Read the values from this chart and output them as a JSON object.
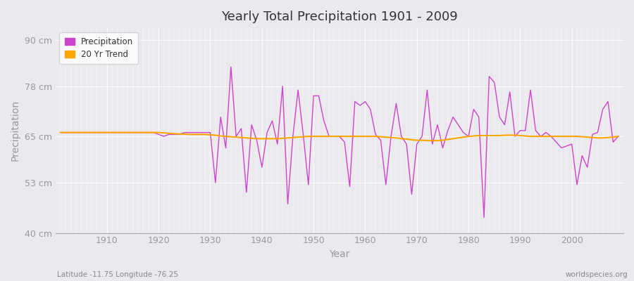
{
  "title": "Yearly Total Precipitation 1901 - 2009",
  "xlabel": "Year",
  "ylabel": "Precipitation",
  "subtitle_left": "Latitude -11.75 Longitude -76.25",
  "subtitle_right": "worldspecies.org",
  "ylim": [
    40,
    93
  ],
  "yticks": [
    40,
    53,
    65,
    78,
    90
  ],
  "ytick_labels": [
    "40 cm",
    "53 cm",
    "65 cm",
    "78 cm",
    "90 cm"
  ],
  "xlim": [
    1900,
    2010
  ],
  "xticks": [
    1910,
    1920,
    1930,
    1940,
    1950,
    1960,
    1970,
    1980,
    1990,
    2000
  ],
  "precip_color": "#CC44CC",
  "trend_color": "#FFA500",
  "background_color": "#EAEAEE",
  "plot_bg_color": "#EAEAEE",
  "grid_color": "#FFFFFF",
  "legend_text_color": "#333333",
  "tick_color": "#999999",
  "title_color": "#333333",
  "axis_label_color": "#999999",
  "legend_labels": [
    "Precipitation",
    "20 Yr Trend"
  ],
  "years": [
    1901,
    1902,
    1903,
    1904,
    1905,
    1906,
    1907,
    1908,
    1909,
    1910,
    1911,
    1912,
    1913,
    1914,
    1915,
    1916,
    1917,
    1918,
    1919,
    1920,
    1921,
    1922,
    1923,
    1924,
    1925,
    1926,
    1927,
    1928,
    1929,
    1930,
    1931,
    1932,
    1933,
    1934,
    1935,
    1936,
    1937,
    1938,
    1939,
    1940,
    1941,
    1942,
    1943,
    1944,
    1945,
    1946,
    1947,
    1948,
    1949,
    1950,
    1951,
    1952,
    1953,
    1954,
    1955,
    1956,
    1957,
    1958,
    1959,
    1960,
    1961,
    1962,
    1963,
    1964,
    1965,
    1966,
    1967,
    1968,
    1969,
    1970,
    1971,
    1972,
    1973,
    1974,
    1975,
    1976,
    1977,
    1978,
    1979,
    1980,
    1981,
    1982,
    1983,
    1984,
    1985,
    1986,
    1987,
    1988,
    1989,
    1990,
    1991,
    1992,
    1993,
    1994,
    1995,
    1996,
    1997,
    1998,
    1999,
    2000,
    2001,
    2002,
    2003,
    2004,
    2005,
    2006,
    2007,
    2008,
    2009
  ],
  "precip": [
    66.0,
    66.0,
    66.0,
    66.0,
    66.0,
    66.0,
    66.0,
    66.0,
    66.0,
    66.0,
    66.0,
    66.0,
    66.0,
    66.0,
    66.0,
    66.0,
    66.0,
    66.0,
    66.0,
    65.5,
    65.0,
    65.5,
    65.5,
    65.5,
    66.0,
    66.0,
    66.0,
    66.0,
    66.0,
    66.0,
    53.0,
    70.0,
    62.0,
    83.0,
    65.0,
    67.0,
    50.5,
    68.0,
    64.0,
    57.0,
    66.0,
    69.0,
    63.0,
    78.0,
    47.5,
    65.0,
    77.0,
    65.5,
    52.5,
    75.5,
    75.5,
    69.0,
    65.0,
    65.0,
    65.0,
    63.5,
    52.0,
    74.0,
    73.0,
    74.0,
    72.0,
    65.5,
    64.0,
    52.5,
    65.0,
    73.5,
    65.0,
    63.0,
    50.0,
    63.0,
    65.0,
    77.0,
    63.0,
    68.0,
    62.0,
    66.5,
    70.0,
    68.0,
    66.0,
    65.0,
    72.0,
    70.0,
    44.0,
    80.5,
    79.0,
    70.0,
    68.0,
    76.5,
    65.0,
    66.5,
    66.5,
    77.0,
    66.5,
    65.0,
    66.0,
    65.0,
    63.5,
    62.0,
    62.5,
    63.0,
    52.5,
    60.0,
    57.0,
    65.5,
    66.0,
    72.0,
    74.0,
    63.5,
    65.0
  ],
  "trend": [
    66.0,
    66.0,
    66.0,
    66.0,
    66.0,
    66.0,
    66.0,
    66.0,
    66.0,
    66.0,
    66.0,
    66.0,
    66.0,
    66.0,
    66.0,
    66.0,
    66.0,
    66.0,
    66.0,
    66.0,
    65.9,
    65.8,
    65.7,
    65.6,
    65.6,
    65.5,
    65.5,
    65.5,
    65.5,
    65.4,
    65.3,
    65.1,
    65.0,
    64.9,
    64.8,
    64.7,
    64.6,
    64.5,
    64.4,
    64.4,
    64.4,
    64.4,
    64.4,
    64.5,
    64.6,
    64.7,
    64.8,
    64.9,
    65.0,
    65.0,
    65.0,
    65.0,
    65.0,
    65.0,
    65.0,
    65.0,
    65.0,
    65.0,
    65.0,
    65.0,
    65.0,
    65.0,
    64.9,
    64.8,
    64.7,
    64.6,
    64.4,
    64.3,
    64.1,
    64.0,
    64.0,
    63.9,
    63.9,
    63.9,
    64.0,
    64.2,
    64.4,
    64.6,
    64.8,
    65.0,
    65.1,
    65.2,
    65.2,
    65.2,
    65.2,
    65.2,
    65.3,
    65.3,
    65.3,
    65.2,
    65.1,
    65.0,
    65.0,
    65.0,
    65.0,
    65.0,
    65.0,
    65.0,
    65.0,
    65.0,
    65.0,
    64.9,
    64.8,
    64.7,
    64.6,
    64.6,
    64.7,
    64.8,
    65.0
  ]
}
